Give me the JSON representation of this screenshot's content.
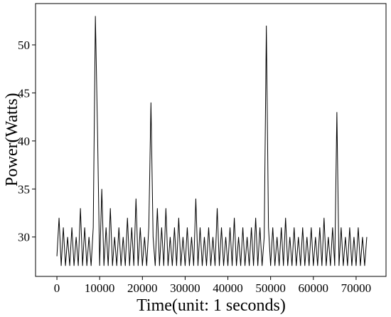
{
  "chart_data": {
    "type": "line",
    "x_label": "Time(unit: 1 seconds)",
    "y_label": "Power(Watts)",
    "x": [
      0,
      500,
      1000,
      1500,
      2000,
      2500,
      3000,
      3500,
      4000,
      4500,
      5000,
      5500,
      6000,
      6500,
      7000,
      7500,
      8000,
      8500,
      9000,
      9500,
      10000,
      10500,
      11000,
      11500,
      12000,
      12500,
      13000,
      13500,
      14000,
      14500,
      15000,
      15500,
      16000,
      16500,
      17000,
      17500,
      18000,
      18500,
      19000,
      19500,
      20000,
      20500,
      21000,
      21500,
      22000,
      22500,
      23000,
      23500,
      24000,
      24500,
      25000,
      25500,
      26000,
      26500,
      27000,
      27500,
      28000,
      28500,
      29000,
      29500,
      30000,
      30500,
      31000,
      31500,
      32000,
      32500,
      33000,
      33500,
      34000,
      34500,
      35000,
      35500,
      36000,
      36500,
      37000,
      37500,
      38000,
      38500,
      39000,
      39500,
      40000,
      40500,
      41000,
      41500,
      42000,
      42500,
      43000,
      43500,
      44000,
      44500,
      45000,
      45500,
      46000,
      46500,
      47000,
      47500,
      48000,
      48500,
      49000,
      49500,
      50000,
      50500,
      51000,
      51500,
      52000,
      52500,
      53000,
      53500,
      54000,
      54500,
      55000,
      55500,
      56000,
      56500,
      57000,
      57500,
      58000,
      58500,
      59000,
      59500,
      60000,
      60500,
      61000,
      61500,
      62000,
      62500,
      63000,
      63500,
      64000,
      64500,
      65000,
      65500,
      66000,
      66500,
      67000,
      67500,
      68000,
      68500,
      69000,
      69500,
      70000,
      70500,
      71000,
      71500,
      72000,
      72500
    ],
    "series": [
      {
        "color": "#000000",
        "values": [
          28,
          32,
          27,
          31,
          27,
          30,
          27,
          31,
          27,
          30,
          27,
          33,
          27,
          31,
          27,
          30,
          27,
          31,
          53,
          41,
          27,
          35,
          27,
          31,
          27,
          33,
          27,
          30,
          27,
          31,
          27,
          30,
          27,
          32,
          27,
          31,
          27,
          34,
          27,
          31,
          27,
          30,
          27,
          31,
          44,
          30,
          27,
          33,
          27,
          31,
          27,
          33,
          27,
          30,
          27,
          31,
          27,
          32,
          27,
          30,
          27,
          31,
          27,
          30,
          27,
          34,
          27,
          31,
          27,
          30,
          27,
          31,
          27,
          30,
          27,
          33,
          27,
          31,
          27,
          30,
          27,
          31,
          27,
          32,
          27,
          30,
          27,
          31,
          27,
          30,
          27,
          31,
          27,
          32,
          27,
          31,
          27,
          30,
          52,
          31,
          27,
          31,
          27,
          30,
          27,
          31,
          27,
          32,
          27,
          30,
          27,
          31,
          27,
          30,
          27,
          31,
          27,
          30,
          27,
          31,
          27,
          30,
          27,
          31,
          27,
          32,
          27,
          30,
          27,
          31,
          27,
          43,
          27,
          31,
          27,
          30,
          27,
          31,
          27,
          30,
          27,
          31,
          27,
          30,
          27,
          30
        ]
      }
    ],
    "xlim": [
      -5000,
      77000
    ],
    "ylim": [
      25.9,
      54.3
    ],
    "xticks": [
      0,
      10000,
      20000,
      30000,
      40000,
      50000,
      60000,
      70000
    ],
    "yticks": [
      30,
      35,
      40,
      45,
      50
    ]
  }
}
